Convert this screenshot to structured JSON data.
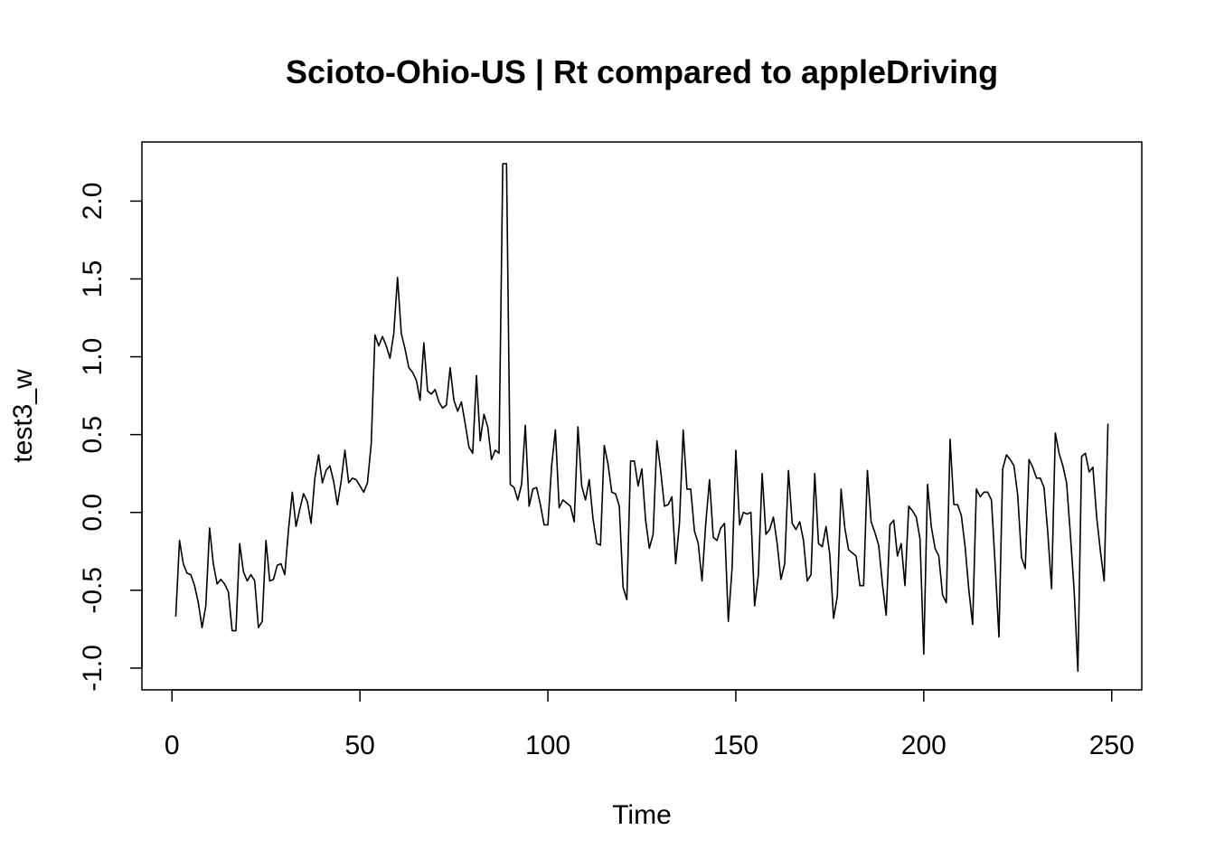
{
  "chart_data": {
    "type": "line",
    "title": "Scioto-Ohio-US | Rt compared to appleDriving",
    "xlabel": "Time",
    "ylabel": "test3_w",
    "xlim": [
      -8,
      258
    ],
    "ylim": [
      -1.14,
      2.38
    ],
    "x_ticks": [
      0,
      50,
      100,
      150,
      200,
      250
    ],
    "x_tick_labels": [
      "0",
      "50",
      "100",
      "150",
      "200",
      "250"
    ],
    "y_ticks": [
      -1.0,
      -0.5,
      0.0,
      0.5,
      1.0,
      1.5,
      2.0
    ],
    "y_tick_labels": [
      "-1.0",
      "-0.5",
      "0.0",
      "0.5",
      "1.0",
      "1.5",
      "2.0"
    ],
    "grid": false,
    "legend": "none",
    "line_color": "#000000",
    "series": [
      {
        "x_start": 1,
        "x_step": 1,
        "values": [
          -0.67,
          -0.18,
          -0.33,
          -0.39,
          -0.4,
          -0.47,
          -0.58,
          -0.74,
          -0.6,
          -0.1,
          -0.33,
          -0.46,
          -0.43,
          -0.46,
          -0.51,
          -0.76,
          -0.76,
          -0.2,
          -0.38,
          -0.44,
          -0.4,
          -0.44,
          -0.74,
          -0.7,
          -0.18,
          -0.44,
          -0.43,
          -0.34,
          -0.33,
          -0.4,
          -0.11,
          0.13,
          -0.09,
          0.02,
          0.12,
          0.07,
          -0.07,
          0.22,
          0.37,
          0.19,
          0.27,
          0.3,
          0.2,
          0.05,
          0.2,
          0.4,
          0.19,
          0.22,
          0.21,
          0.17,
          0.13,
          0.19,
          0.44,
          1.14,
          1.07,
          1.13,
          1.07,
          0.99,
          1.15,
          1.51,
          1.15,
          1.05,
          0.93,
          0.9,
          0.85,
          0.72,
          1.09,
          0.78,
          0.76,
          0.79,
          0.71,
          0.67,
          0.69,
          0.93,
          0.72,
          0.65,
          0.71,
          0.57,
          0.42,
          0.38,
          0.88,
          0.46,
          0.63,
          0.55,
          0.34,
          0.4,
          0.38,
          2.24,
          2.24,
          0.18,
          0.16,
          0.08,
          0.18,
          0.56,
          0.04,
          0.15,
          0.16,
          0.05,
          -0.08,
          -0.08,
          0.3,
          0.53,
          0.03,
          0.08,
          0.06,
          0.04,
          -0.06,
          0.55,
          0.17,
          0.08,
          0.21,
          -0.04,
          -0.2,
          -0.21,
          0.43,
          0.31,
          0.13,
          0.12,
          0.04,
          -0.48,
          -0.56,
          0.33,
          0.33,
          0.17,
          0.28,
          -0.05,
          -0.23,
          -0.14,
          0.46,
          0.27,
          0.04,
          0.05,
          0.1,
          -0.33,
          -0.07,
          0.53,
          0.15,
          0.15,
          -0.12,
          -0.2,
          -0.44,
          -0.07,
          0.21,
          -0.16,
          -0.18,
          -0.1,
          -0.07,
          -0.7,
          -0.36,
          0.4,
          -0.08,
          0.0,
          -0.01,
          0.0,
          -0.6,
          -0.4,
          0.25,
          -0.14,
          -0.11,
          -0.03,
          -0.2,
          -0.43,
          -0.33,
          0.27,
          -0.07,
          -0.11,
          -0.06,
          -0.18,
          -0.44,
          -0.4,
          0.25,
          -0.2,
          -0.22,
          -0.09,
          -0.27,
          -0.68,
          -0.54,
          0.15,
          -0.1,
          -0.24,
          -0.26,
          -0.28,
          -0.47,
          -0.47,
          0.27,
          -0.06,
          -0.13,
          -0.21,
          -0.46,
          -0.66,
          -0.08,
          -0.05,
          -0.28,
          -0.2,
          -0.47,
          0.04,
          0.01,
          -0.03,
          -0.17,
          -0.91,
          0.18,
          -0.09,
          -0.23,
          -0.28,
          -0.53,
          -0.58,
          0.47,
          0.05,
          0.05,
          -0.02,
          -0.22,
          -0.5,
          -0.72,
          0.15,
          0.1,
          0.13,
          0.13,
          0.08,
          -0.34,
          -0.8,
          0.28,
          0.37,
          0.34,
          0.3,
          0.11,
          -0.29,
          -0.36,
          0.34,
          0.29,
          0.22,
          0.22,
          0.16,
          -0.13,
          -0.49,
          0.51,
          0.38,
          0.3,
          0.19,
          -0.14,
          -0.5,
          -1.02,
          0.36,
          0.38,
          0.26,
          0.29,
          -0.03,
          -0.25,
          -0.44,
          0.57
        ]
      }
    ]
  }
}
